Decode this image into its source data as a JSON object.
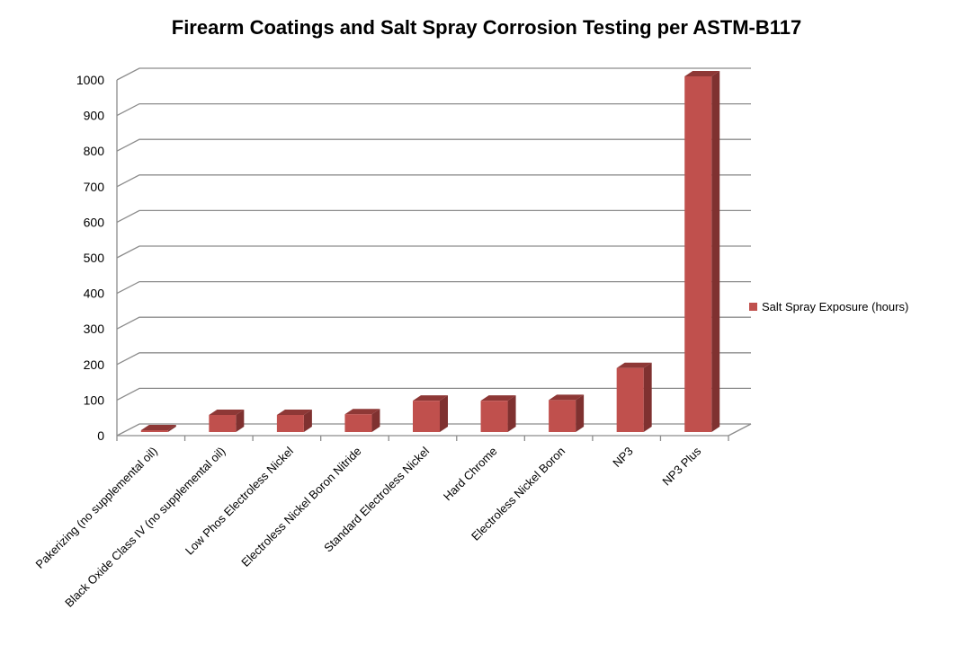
{
  "chart_data": {
    "type": "bar",
    "title": "Firearm Coatings and Salt Spray Corrosion Testing per ASTM-B117",
    "xlabel": "",
    "ylabel": "",
    "ylim": [
      0,
      1000
    ],
    "yticks": [
      "0",
      "100",
      "200",
      "300",
      "400",
      "500",
      "600",
      "700",
      "800",
      "900",
      "1000"
    ],
    "categories": [
      "Pakerizing (no supplemental oil)",
      "Black Oxide Class IV (no supplemental oil)",
      "Low Phos Electroless Nickel",
      "Electroless Nickel Boron Nitride",
      "Standard Electroless Nickel",
      "Hard Chrome",
      "Electroless Nickel Boron",
      "NP3",
      "NP3 Plus"
    ],
    "series": [
      {
        "name": "Salt Spray Exposure (hours)",
        "values": [
          5,
          48,
          48,
          50,
          88,
          88,
          90,
          180,
          1000
        ],
        "color": "#c0504d"
      }
    ],
    "legend": "right",
    "grid": true
  }
}
